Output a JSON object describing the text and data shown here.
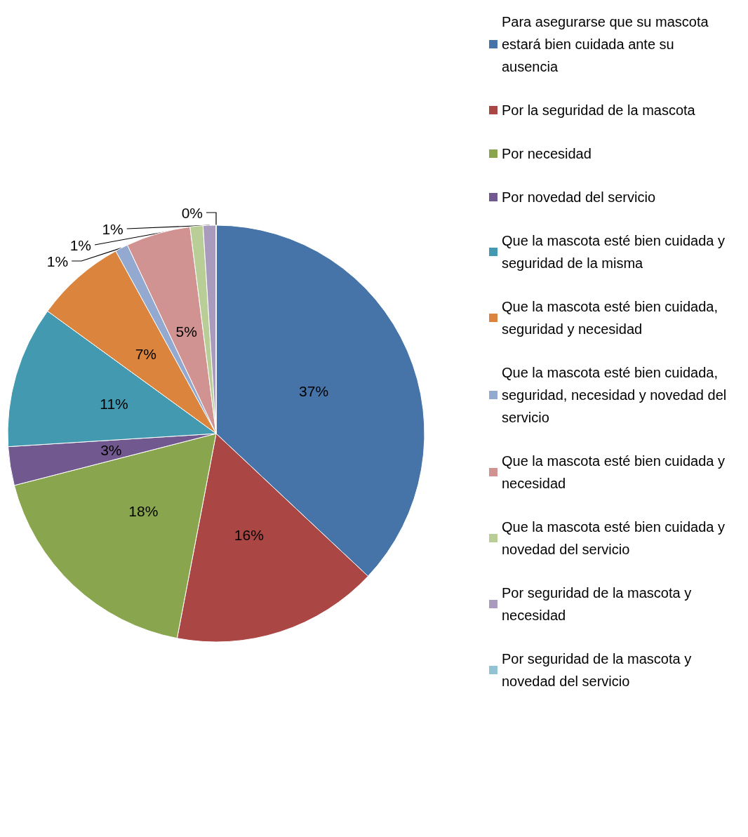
{
  "chart_data": {
    "type": "pie",
    "legend": "right",
    "categories": [
      "Para asegurarse que su mascota estará bien cuidada ante su ausencia",
      "Por la seguridad de la mascota",
      "Por necesidad",
      "Por novedad del servicio",
      "Que la mascota esté bien cuidada y seguridad de la misma",
      "Que la mascota esté bien cuidada, seguridad y necesidad",
      "Que la mascota esté bien cuidada, seguridad, necesidad y novedad del servicio",
      "Que la mascota esté bien cuidada y necesidad",
      "Que la mascota esté bien cuidada y novedad del servicio",
      "Por seguridad de la mascota y necesidad",
      "Por seguridad de la mascota y novedad del servicio"
    ],
    "values": [
      37,
      16,
      18,
      3,
      11,
      7,
      1,
      5,
      1,
      1,
      0
    ],
    "value_labels": [
      "37%",
      "16%",
      "18%",
      "3%",
      "11%",
      "7%",
      "1%",
      "5%",
      "1%",
      "1%",
      "0%"
    ],
    "colors": [
      "#4674a8",
      "#aa4644",
      "#89a64e",
      "#71598f",
      "#4299b0",
      "#db843d",
      "#93a9d0",
      "#d19392",
      "#b9cd96",
      "#a99bbd",
      "#91c3d5"
    ]
  }
}
